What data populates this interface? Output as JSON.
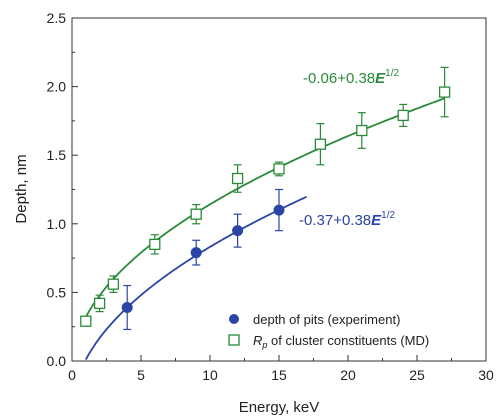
{
  "chart_data": {
    "type": "scatter",
    "xlabel": "Energy, keV",
    "ylabel": "Depth, nm",
    "xlim": [
      0,
      30
    ],
    "ylim": [
      0,
      2.5
    ],
    "xticks": [
      "0",
      "5",
      "10",
      "15",
      "20",
      "25",
      "30"
    ],
    "yticks": [
      "0.0",
      "0.5",
      "1.0",
      "1.5",
      "2.0",
      "2.5"
    ],
    "grid": false,
    "legend_position": "bottom-right",
    "series": [
      {
        "name": "depth of pits (experiment)",
        "marker": "filled-circle",
        "color": "#2b45a6",
        "points": [
          {
            "x": 4,
            "y": 0.39,
            "err": 0.16
          },
          {
            "x": 9,
            "y": 0.79,
            "err": 0.09
          },
          {
            "x": 12,
            "y": 0.95,
            "err": 0.12
          },
          {
            "x": 15,
            "y": 1.1,
            "err": 0.15
          }
        ]
      },
      {
        "name_prefix": "R",
        "name_sub": "p",
        "name_suffix": " of cluster constituents (MD)",
        "marker": "open-square",
        "color": "#2a8a3a",
        "points": [
          {
            "x": 1,
            "y": 0.29,
            "err": 0
          },
          {
            "x": 2,
            "y": 0.42,
            "err": 0.06
          },
          {
            "x": 3,
            "y": 0.56,
            "err": 0.06
          },
          {
            "x": 6,
            "y": 0.85,
            "err": 0.07
          },
          {
            "x": 9,
            "y": 1.07,
            "err": 0.07
          },
          {
            "x": 12,
            "y": 1.33,
            "err": 0.1
          },
          {
            "x": 15,
            "y": 1.4,
            "err": 0.05
          },
          {
            "x": 18,
            "y": 1.58,
            "err": 0.15
          },
          {
            "x": 21,
            "y": 1.68,
            "err": 0.13
          },
          {
            "x": 24,
            "y": 1.79,
            "err": 0.08
          },
          {
            "x": 27,
            "y": 1.96,
            "err": 0.18
          }
        ]
      }
    ],
    "fits": [
      {
        "label_main": "-0.06+0.38",
        "label_var": "E",
        "label_exp": "1/2",
        "a": -0.06,
        "b": 0.38,
        "x_range": [
          1,
          27
        ],
        "color": "#2a8a3a"
      },
      {
        "label_main": "-0.37+0.38",
        "label_var": "E",
        "label_exp": "1/2",
        "a": -0.37,
        "b": 0.38,
        "x_range": [
          1,
          17
        ],
        "color": "#2b45a6"
      }
    ]
  }
}
